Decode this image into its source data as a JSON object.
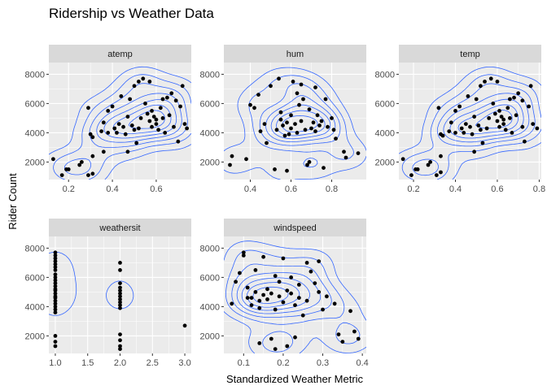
{
  "chart_data": {
    "type": "scatter",
    "title": "Ridership vs Weather Data",
    "xlabel": "Standardized Weather Metric",
    "ylabel": "Rider Count",
    "overlay": "density-contours",
    "point_color": "#000000",
    "contour_color": "#3366ff",
    "panel_background": "#ebebeb",
    "strip_background": "#d9d9d9",
    "y_ticks": [
      2000,
      4000,
      6000,
      8000
    ],
    "y_tick_labels": [
      "2000",
      "4000",
      "6000",
      "8000"
    ],
    "ylim": [
      800,
      8800
    ],
    "panels": [
      {
        "name": "atemp",
        "xlim": [
          0.11,
          0.76
        ],
        "x_ticks": [
          0.2,
          0.4,
          0.6
        ],
        "x_tick_labels": [
          "0.2",
          "0.4",
          "0.6"
        ],
        "points": [
          [
            0.13,
            2200
          ],
          [
            0.17,
            1100
          ],
          [
            0.19,
            1500
          ],
          [
            0.2,
            1500
          ],
          [
            0.25,
            1800
          ],
          [
            0.26,
            2000
          ],
          [
            0.29,
            1100
          ],
          [
            0.31,
            1200
          ],
          [
            0.31,
            2400
          ],
          [
            0.3,
            3900
          ],
          [
            0.31,
            3700
          ],
          [
            0.29,
            5700
          ],
          [
            0.35,
            4100
          ],
          [
            0.36,
            4700
          ],
          [
            0.38,
            4000
          ],
          [
            0.38,
            5500
          ],
          [
            0.4,
            5800
          ],
          [
            0.41,
            4300
          ],
          [
            0.42,
            4000
          ],
          [
            0.43,
            4600
          ],
          [
            0.44,
            6500
          ],
          [
            0.45,
            4400
          ],
          [
            0.46,
            3900
          ],
          [
            0.47,
            5100
          ],
          [
            0.48,
            6300
          ],
          [
            0.49,
            4500
          ],
          [
            0.5,
            4200
          ],
          [
            0.5,
            7200
          ],
          [
            0.52,
            7500
          ],
          [
            0.52,
            4300
          ],
          [
            0.53,
            5000
          ],
          [
            0.54,
            7700
          ],
          [
            0.55,
            6000
          ],
          [
            0.56,
            5300
          ],
          [
            0.57,
            4800
          ],
          [
            0.58,
            4400
          ],
          [
            0.58,
            5500
          ],
          [
            0.59,
            5100
          ],
          [
            0.6,
            4900
          ],
          [
            0.6,
            4600
          ],
          [
            0.61,
            4200
          ],
          [
            0.62,
            5700
          ],
          [
            0.63,
            5000
          ],
          [
            0.63,
            6300
          ],
          [
            0.64,
            4000
          ],
          [
            0.65,
            6400
          ],
          [
            0.66,
            5200
          ],
          [
            0.67,
            6700
          ],
          [
            0.68,
            4400
          ],
          [
            0.7,
            3400
          ],
          [
            0.72,
            7200
          ],
          [
            0.73,
            4600
          ],
          [
            0.74,
            4300
          ],
          [
            0.71,
            5800
          ],
          [
            0.69,
            6200
          ],
          [
            0.57,
            7500
          ],
          [
            0.47,
            2700
          ],
          [
            0.51,
            3300
          ],
          [
            0.36,
            2700
          ]
        ]
      },
      {
        "name": "hum",
        "xlim": [
          0.27,
          0.97
        ],
        "x_ticks": [
          0.4,
          0.6,
          0.8
        ],
        "x_tick_labels": [
          "0.4",
          "0.6",
          "0.8"
        ],
        "points": [
          [
            0.3,
            1800
          ],
          [
            0.31,
            2400
          ],
          [
            0.38,
            2200
          ],
          [
            0.4,
            5900
          ],
          [
            0.42,
            5700
          ],
          [
            0.44,
            6600
          ],
          [
            0.45,
            4100
          ],
          [
            0.47,
            4600
          ],
          [
            0.48,
            3300
          ],
          [
            0.5,
            7200
          ],
          [
            0.52,
            1500
          ],
          [
            0.53,
            4200
          ],
          [
            0.54,
            7700
          ],
          [
            0.55,
            4900
          ],
          [
            0.56,
            4500
          ],
          [
            0.57,
            3800
          ],
          [
            0.58,
            4700
          ],
          [
            0.58,
            1400
          ],
          [
            0.6,
            5200
          ],
          [
            0.6,
            4300
          ],
          [
            0.61,
            7500
          ],
          [
            0.62,
            4600
          ],
          [
            0.63,
            4000
          ],
          [
            0.64,
            5900
          ],
          [
            0.65,
            4800
          ],
          [
            0.65,
            7300
          ],
          [
            0.66,
            6300
          ],
          [
            0.67,
            4200
          ],
          [
            0.68,
            1800
          ],
          [
            0.69,
            5600
          ],
          [
            0.7,
            4300
          ],
          [
            0.71,
            4700
          ],
          [
            0.72,
            4100
          ],
          [
            0.72,
            7100
          ],
          [
            0.73,
            5200
          ],
          [
            0.74,
            4500
          ],
          [
            0.75,
            4800
          ],
          [
            0.76,
            1600
          ],
          [
            0.77,
            6300
          ],
          [
            0.78,
            4400
          ],
          [
            0.8,
            5000
          ],
          [
            0.81,
            4200
          ],
          [
            0.82,
            3600
          ],
          [
            0.86,
            2700
          ],
          [
            0.87,
            2300
          ],
          [
            0.93,
            2600
          ],
          [
            0.55,
            5400
          ],
          [
            0.63,
            6700
          ],
          [
            0.69,
            2000
          ],
          [
            0.59,
            3900
          ]
        ]
      },
      {
        "name": "temp",
        "xlim": [
          0.13,
          0.81
        ],
        "x_ticks": [
          0.2,
          0.4,
          0.6,
          0.8
        ],
        "x_tick_labels": [
          "0.2",
          "0.4",
          "0.6",
          "0.8"
        ],
        "points": [
          [
            0.15,
            2200
          ],
          [
            0.19,
            1100
          ],
          [
            0.21,
            1500
          ],
          [
            0.22,
            1500
          ],
          [
            0.27,
            1800
          ],
          [
            0.28,
            2000
          ],
          [
            0.31,
            1100
          ],
          [
            0.33,
            1300
          ],
          [
            0.33,
            2400
          ],
          [
            0.33,
            3900
          ],
          [
            0.34,
            3800
          ],
          [
            0.32,
            5700
          ],
          [
            0.37,
            4100
          ],
          [
            0.38,
            4700
          ],
          [
            0.4,
            4000
          ],
          [
            0.4,
            5500
          ],
          [
            0.42,
            5800
          ],
          [
            0.43,
            4300
          ],
          [
            0.44,
            4000
          ],
          [
            0.45,
            4600
          ],
          [
            0.46,
            6500
          ],
          [
            0.47,
            4400
          ],
          [
            0.48,
            3900
          ],
          [
            0.49,
            5100
          ],
          [
            0.5,
            6300
          ],
          [
            0.51,
            4500
          ],
          [
            0.52,
            4200
          ],
          [
            0.52,
            7200
          ],
          [
            0.54,
            7500
          ],
          [
            0.55,
            4300
          ],
          [
            0.56,
            5000
          ],
          [
            0.57,
            7700
          ],
          [
            0.58,
            6000
          ],
          [
            0.59,
            5300
          ],
          [
            0.6,
            4800
          ],
          [
            0.61,
            4400
          ],
          [
            0.61,
            5500
          ],
          [
            0.62,
            5100
          ],
          [
            0.63,
            4900
          ],
          [
            0.63,
            4600
          ],
          [
            0.64,
            4200
          ],
          [
            0.65,
            5700
          ],
          [
            0.66,
            5000
          ],
          [
            0.66,
            6300
          ],
          [
            0.67,
            4000
          ],
          [
            0.68,
            6400
          ],
          [
            0.69,
            5200
          ],
          [
            0.7,
            6700
          ],
          [
            0.72,
            4400
          ],
          [
            0.73,
            3400
          ],
          [
            0.76,
            7200
          ],
          [
            0.77,
            4600
          ],
          [
            0.79,
            4300
          ],
          [
            0.75,
            5800
          ],
          [
            0.72,
            6200
          ],
          [
            0.6,
            7500
          ],
          [
            0.49,
            2700
          ],
          [
            0.53,
            3300
          ]
        ]
      },
      {
        "name": "weathersit",
        "xlim": [
          0.9,
          3.1
        ],
        "x_ticks": [
          1.0,
          1.5,
          2.0,
          2.5,
          3.0
        ],
        "x_tick_labels": [
          "1.0",
          "1.5",
          "2.0",
          "2.5",
          "3.0"
        ],
        "points": [
          [
            1,
            1300
          ],
          [
            1,
            1600
          ],
          [
            1,
            2000
          ],
          [
            1,
            3600
          ],
          [
            1,
            3800
          ],
          [
            1,
            4000
          ],
          [
            1,
            4200
          ],
          [
            1,
            4400
          ],
          [
            1,
            4600
          ],
          [
            1,
            4700
          ],
          [
            1,
            4900
          ],
          [
            1,
            5100
          ],
          [
            1,
            5200
          ],
          [
            1,
            5400
          ],
          [
            1,
            5600
          ],
          [
            1,
            5800
          ],
          [
            1,
            6000
          ],
          [
            1,
            6200
          ],
          [
            1,
            6500
          ],
          [
            1,
            6700
          ],
          [
            1,
            6900
          ],
          [
            1,
            7100
          ],
          [
            1,
            7300
          ],
          [
            1,
            7500
          ],
          [
            1,
            7700
          ],
          [
            2,
            1100
          ],
          [
            2,
            1300
          ],
          [
            2,
            1700
          ],
          [
            2,
            2100
          ],
          [
            2,
            3900
          ],
          [
            2,
            4100
          ],
          [
            2,
            4300
          ],
          [
            2,
            4500
          ],
          [
            2,
            4700
          ],
          [
            2,
            4900
          ],
          [
            2,
            5100
          ],
          [
            2,
            5300
          ],
          [
            2,
            5600
          ],
          [
            2,
            6500
          ],
          [
            2,
            7000
          ],
          [
            3,
            2700
          ]
        ]
      },
      {
        "name": "windspeed",
        "xlim": [
          0.05,
          0.41
        ],
        "x_ticks": [
          0.1,
          0.2,
          0.3,
          0.4
        ],
        "x_tick_labels": [
          "0.1",
          "0.2",
          "0.3",
          "0.4"
        ],
        "points": [
          [
            0.07,
            4200
          ],
          [
            0.08,
            5700
          ],
          [
            0.09,
            6300
          ],
          [
            0.1,
            7500
          ],
          [
            0.1,
            7700
          ],
          [
            0.11,
            5300
          ],
          [
            0.12,
            4100
          ],
          [
            0.12,
            4600
          ],
          [
            0.13,
            5000
          ],
          [
            0.13,
            6500
          ],
          [
            0.14,
            4400
          ],
          [
            0.14,
            3900
          ],
          [
            0.15,
            4800
          ],
          [
            0.15,
            7400
          ],
          [
            0.16,
            5200
          ],
          [
            0.16,
            4500
          ],
          [
            0.17,
            1800
          ],
          [
            0.17,
            4900
          ],
          [
            0.18,
            6100
          ],
          [
            0.18,
            3800
          ],
          [
            0.19,
            5700
          ],
          [
            0.19,
            4700
          ],
          [
            0.2,
            7300
          ],
          [
            0.2,
            4300
          ],
          [
            0.21,
            5100
          ],
          [
            0.21,
            1300
          ],
          [
            0.22,
            4900
          ],
          [
            0.22,
            6000
          ],
          [
            0.23,
            4100
          ],
          [
            0.23,
            1900
          ],
          [
            0.24,
            5500
          ],
          [
            0.25,
            3400
          ],
          [
            0.26,
            7000
          ],
          [
            0.26,
            4400
          ],
          [
            0.27,
            6400
          ],
          [
            0.28,
            5600
          ],
          [
            0.29,
            5000
          ],
          [
            0.29,
            7100
          ],
          [
            0.3,
            3800
          ],
          [
            0.31,
            4700
          ],
          [
            0.33,
            4200
          ],
          [
            0.34,
            2100
          ],
          [
            0.35,
            1600
          ],
          [
            0.37,
            3700
          ],
          [
            0.38,
            2300
          ],
          [
            0.39,
            1800
          ],
          [
            0.18,
            1100
          ],
          [
            0.14,
            1500
          ],
          [
            0.11,
            4600
          ],
          [
            0.24,
            4600
          ]
        ]
      }
    ]
  }
}
